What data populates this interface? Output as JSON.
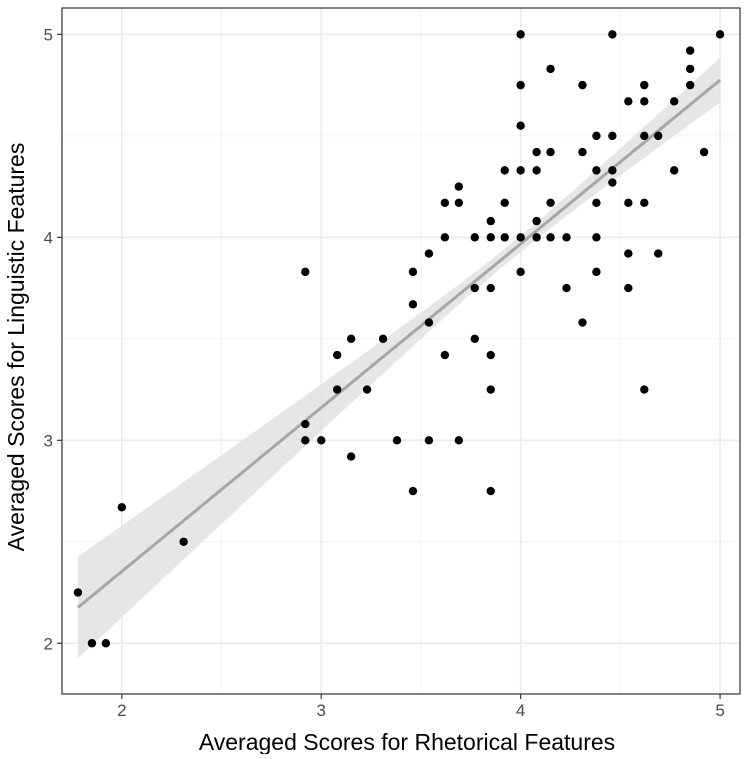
{
  "chart_data": {
    "type": "scatter",
    "title": "",
    "xlabel": "Averaged Scores for Rhetorical Features",
    "ylabel": "Averaged Scores for Linguistic Features",
    "xlim": [
      1.7,
      5.1
    ],
    "ylim": [
      1.75,
      5.13
    ],
    "x_ticks": [
      2,
      3,
      4,
      5
    ],
    "y_ticks": [
      2,
      3,
      4,
      5
    ],
    "x_minor_ticks": [
      2.5,
      3.5,
      4.5
    ],
    "y_minor_ticks": [
      2.5,
      3.5,
      4.5
    ],
    "grid": true,
    "regression": {
      "slope": 0.807,
      "intercept": 0.74,
      "x_range": [
        1.78,
        5.0
      ],
      "ci_lower_at_ends": [
        1.9,
        4.7
      ],
      "ci_upper_at_ends": [
        2.4,
        4.92
      ],
      "ci_at_mean": 0.04,
      "x_mean": 3.95
    },
    "points": [
      {
        "x": 1.78,
        "y": 2.25
      },
      {
        "x": 1.85,
        "y": 2.0
      },
      {
        "x": 1.92,
        "y": 2.0
      },
      {
        "x": 2.0,
        "y": 2.67
      },
      {
        "x": 2.31,
        "y": 2.5
      },
      {
        "x": 2.92,
        "y": 3.83
      },
      {
        "x": 2.92,
        "y": 3.08
      },
      {
        "x": 2.92,
        "y": 3.0
      },
      {
        "x": 3.0,
        "y": 3.0
      },
      {
        "x": 3.08,
        "y": 3.42
      },
      {
        "x": 3.08,
        "y": 3.25
      },
      {
        "x": 3.15,
        "y": 3.5
      },
      {
        "x": 3.15,
        "y": 2.92
      },
      {
        "x": 3.23,
        "y": 3.25
      },
      {
        "x": 3.31,
        "y": 3.5
      },
      {
        "x": 3.38,
        "y": 3.0
      },
      {
        "x": 3.46,
        "y": 3.83
      },
      {
        "x": 3.46,
        "y": 3.67
      },
      {
        "x": 3.46,
        "y": 2.75
      },
      {
        "x": 3.54,
        "y": 3.92
      },
      {
        "x": 3.54,
        "y": 3.58
      },
      {
        "x": 3.54,
        "y": 3.0
      },
      {
        "x": 3.62,
        "y": 4.17
      },
      {
        "x": 3.62,
        "y": 4.0
      },
      {
        "x": 3.62,
        "y": 3.42
      },
      {
        "x": 3.69,
        "y": 4.25
      },
      {
        "x": 3.69,
        "y": 4.17
      },
      {
        "x": 3.69,
        "y": 3.0
      },
      {
        "x": 3.77,
        "y": 4.0
      },
      {
        "x": 3.77,
        "y": 3.75
      },
      {
        "x": 3.77,
        "y": 3.5
      },
      {
        "x": 3.85,
        "y": 4.08
      },
      {
        "x": 3.85,
        "y": 4.0
      },
      {
        "x": 3.85,
        "y": 3.75
      },
      {
        "x": 3.85,
        "y": 3.42
      },
      {
        "x": 3.85,
        "y": 3.25
      },
      {
        "x": 3.85,
        "y": 2.75
      },
      {
        "x": 3.92,
        "y": 4.33
      },
      {
        "x": 3.92,
        "y": 4.17
      },
      {
        "x": 3.92,
        "y": 4.0
      },
      {
        "x": 4.0,
        "y": 5.0
      },
      {
        "x": 4.0,
        "y": 4.75
      },
      {
        "x": 4.0,
        "y": 4.55
      },
      {
        "x": 4.0,
        "y": 4.33
      },
      {
        "x": 4.0,
        "y": 4.0
      },
      {
        "x": 4.0,
        "y": 3.83
      },
      {
        "x": 4.08,
        "y": 4.42
      },
      {
        "x": 4.08,
        "y": 4.33
      },
      {
        "x": 4.08,
        "y": 4.08
      },
      {
        "x": 4.08,
        "y": 4.0
      },
      {
        "x": 4.15,
        "y": 4.83
      },
      {
        "x": 4.15,
        "y": 4.42
      },
      {
        "x": 4.15,
        "y": 4.17
      },
      {
        "x": 4.15,
        "y": 4.0
      },
      {
        "x": 4.23,
        "y": 4.0
      },
      {
        "x": 4.23,
        "y": 3.75
      },
      {
        "x": 4.31,
        "y": 4.75
      },
      {
        "x": 4.31,
        "y": 4.42
      },
      {
        "x": 4.31,
        "y": 3.58
      },
      {
        "x": 4.38,
        "y": 4.5
      },
      {
        "x": 4.38,
        "y": 4.33
      },
      {
        "x": 4.38,
        "y": 4.17
      },
      {
        "x": 4.38,
        "y": 4.0
      },
      {
        "x": 4.38,
        "y": 3.83
      },
      {
        "x": 4.46,
        "y": 5.0
      },
      {
        "x": 4.46,
        "y": 4.5
      },
      {
        "x": 4.46,
        "y": 4.33
      },
      {
        "x": 4.46,
        "y": 4.27
      },
      {
        "x": 4.54,
        "y": 4.67
      },
      {
        "x": 4.54,
        "y": 4.17
      },
      {
        "x": 4.54,
        "y": 3.92
      },
      {
        "x": 4.54,
        "y": 3.75
      },
      {
        "x": 4.62,
        "y": 4.75
      },
      {
        "x": 4.62,
        "y": 4.67
      },
      {
        "x": 4.62,
        "y": 4.5
      },
      {
        "x": 4.62,
        "y": 4.17
      },
      {
        "x": 4.62,
        "y": 3.25
      },
      {
        "x": 4.69,
        "y": 4.5
      },
      {
        "x": 4.69,
        "y": 3.92
      },
      {
        "x": 4.77,
        "y": 4.67
      },
      {
        "x": 4.77,
        "y": 4.33
      },
      {
        "x": 4.85,
        "y": 4.92
      },
      {
        "x": 4.85,
        "y": 4.83
      },
      {
        "x": 4.85,
        "y": 4.75
      },
      {
        "x": 4.92,
        "y": 4.42
      },
      {
        "x": 5.0,
        "y": 5.0
      }
    ]
  },
  "colors": {
    "background": "#ffffff",
    "grid_major": "#ebebeb",
    "grid_minor": "#f4f4f4",
    "panel_border": "#333333",
    "points": "#000000",
    "regression_line": "#a6a6a6",
    "confidence_band": "#e2e2e2",
    "axis_text": "#4d4d4d",
    "axis_title": "#000000"
  }
}
